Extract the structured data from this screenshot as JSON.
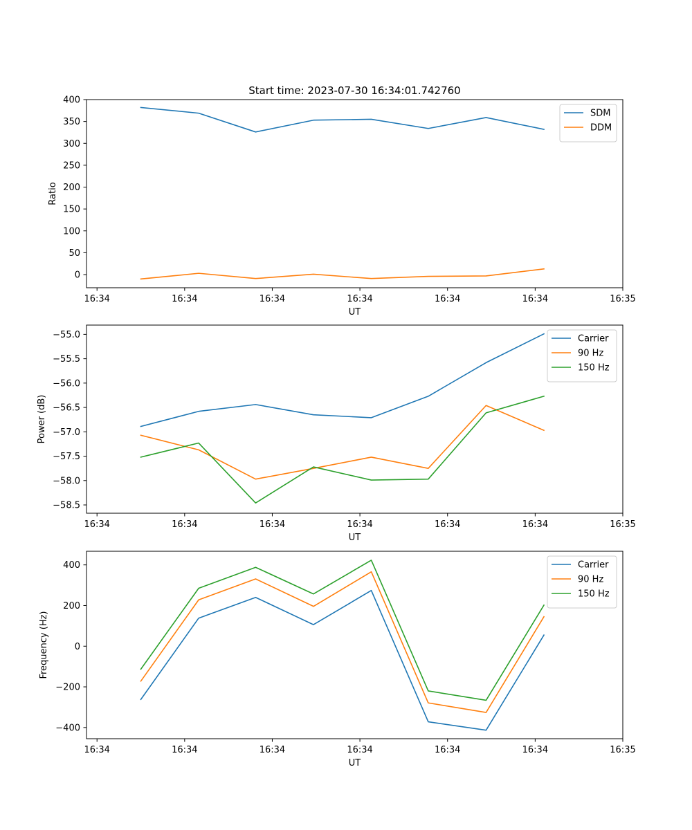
{
  "figure": {
    "title": "Start time: 2023-07-30 16:34:01.742760"
  },
  "chart_data": [
    {
      "type": "line",
      "title": "Start time: 2023-07-30 16:34:01.742760",
      "xlabel": "UT",
      "ylabel": "Ratio",
      "x": [
        0.5,
        1.16,
        1.81,
        2.47,
        3.13,
        3.78,
        4.44,
        5.1
      ],
      "x_ticks": [
        0,
        1,
        2,
        3,
        4,
        5,
        6
      ],
      "x_tick_labels": [
        "16:34",
        "16:34",
        "16:34",
        "16:34",
        "16:34",
        "16:34",
        "16:35"
      ],
      "xlim": [
        -0.12,
        6.0
      ],
      "ylim": [
        -30,
        400
      ],
      "y_ticks": [
        0,
        50,
        100,
        150,
        200,
        250,
        300,
        350,
        400
      ],
      "y_tick_labels": [
        "0",
        "50",
        "100",
        "150",
        "200",
        "250",
        "300",
        "350",
        "400"
      ],
      "legend": "top-right",
      "grid": false,
      "series": [
        {
          "name": "SDM",
          "color": "#1f77b4",
          "values": [
            382,
            369,
            326,
            353,
            355,
            334,
            359,
            332
          ]
        },
        {
          "name": "DDM",
          "color": "#ff7f0e",
          "values": [
            -10,
            3,
            -9,
            1,
            -9,
            -4,
            -3,
            13
          ]
        }
      ]
    },
    {
      "type": "line",
      "title": "",
      "xlabel": "UT",
      "ylabel": "Power (dB)",
      "x": [
        0.5,
        1.16,
        1.81,
        2.47,
        3.13,
        3.78,
        4.44,
        5.1
      ],
      "x_ticks": [
        0,
        1,
        2,
        3,
        4,
        5,
        6
      ],
      "x_tick_labels": [
        "16:34",
        "16:34",
        "16:34",
        "16:34",
        "16:34",
        "16:34",
        "16:35"
      ],
      "xlim": [
        -0.12,
        6.0
      ],
      "ylim": [
        -58.67,
        -54.81
      ],
      "y_ticks": [
        -58.5,
        -58.0,
        -57.5,
        -57.0,
        -56.5,
        -56.0,
        -55.5,
        -55.0
      ],
      "y_tick_labels": [
        "−58.5",
        "−58.0",
        "−57.5",
        "−57.0",
        "−56.5",
        "−56.0",
        "−55.5",
        "−55.0"
      ],
      "legend": "top-right",
      "grid": false,
      "series": [
        {
          "name": "Carrier",
          "color": "#1f77b4",
          "values": [
            -56.89,
            -56.58,
            -56.44,
            -56.65,
            -56.71,
            -56.27,
            -55.58,
            -54.99
          ]
        },
        {
          "name": "90 Hz",
          "color": "#ff7f0e",
          "values": [
            -57.07,
            -57.37,
            -57.97,
            -57.75,
            -57.52,
            -57.75,
            -56.46,
            -56.97
          ]
        },
        {
          "name": "150 Hz",
          "color": "#2ca02c",
          "values": [
            -57.52,
            -57.23,
            -58.46,
            -57.72,
            -57.99,
            -57.97,
            -56.61,
            -56.27
          ]
        }
      ]
    },
    {
      "type": "line",
      "title": "",
      "xlabel": "UT",
      "ylabel": "Frequency (Hz)",
      "x": [
        0.5,
        1.16,
        1.81,
        2.47,
        3.13,
        3.78,
        4.44,
        5.1
      ],
      "x_ticks": [
        0,
        1,
        2,
        3,
        4,
        5,
        6
      ],
      "x_tick_labels": [
        "16:34",
        "16:34",
        "16:34",
        "16:34",
        "16:34",
        "16:34",
        "16:35"
      ],
      "xlim": [
        -0.12,
        6.0
      ],
      "ylim": [
        -455,
        467
      ],
      "y_ticks": [
        -400,
        -200,
        0,
        200,
        400
      ],
      "y_tick_labels": [
        "−400",
        "−200",
        "0",
        "200",
        "400"
      ],
      "legend": "top-right",
      "grid": false,
      "series": [
        {
          "name": "Carrier",
          "color": "#1f77b4",
          "values": [
            -262,
            138,
            240,
            106,
            274,
            -372,
            -413,
            55
          ]
        },
        {
          "name": "90 Hz",
          "color": "#ff7f0e",
          "values": [
            -172,
            228,
            331,
            196,
            366,
            -279,
            -326,
            145
          ]
        },
        {
          "name": "150 Hz",
          "color": "#2ca02c",
          "values": [
            -113,
            285,
            388,
            257,
            423,
            -220,
            -266,
            202
          ]
        }
      ]
    }
  ]
}
